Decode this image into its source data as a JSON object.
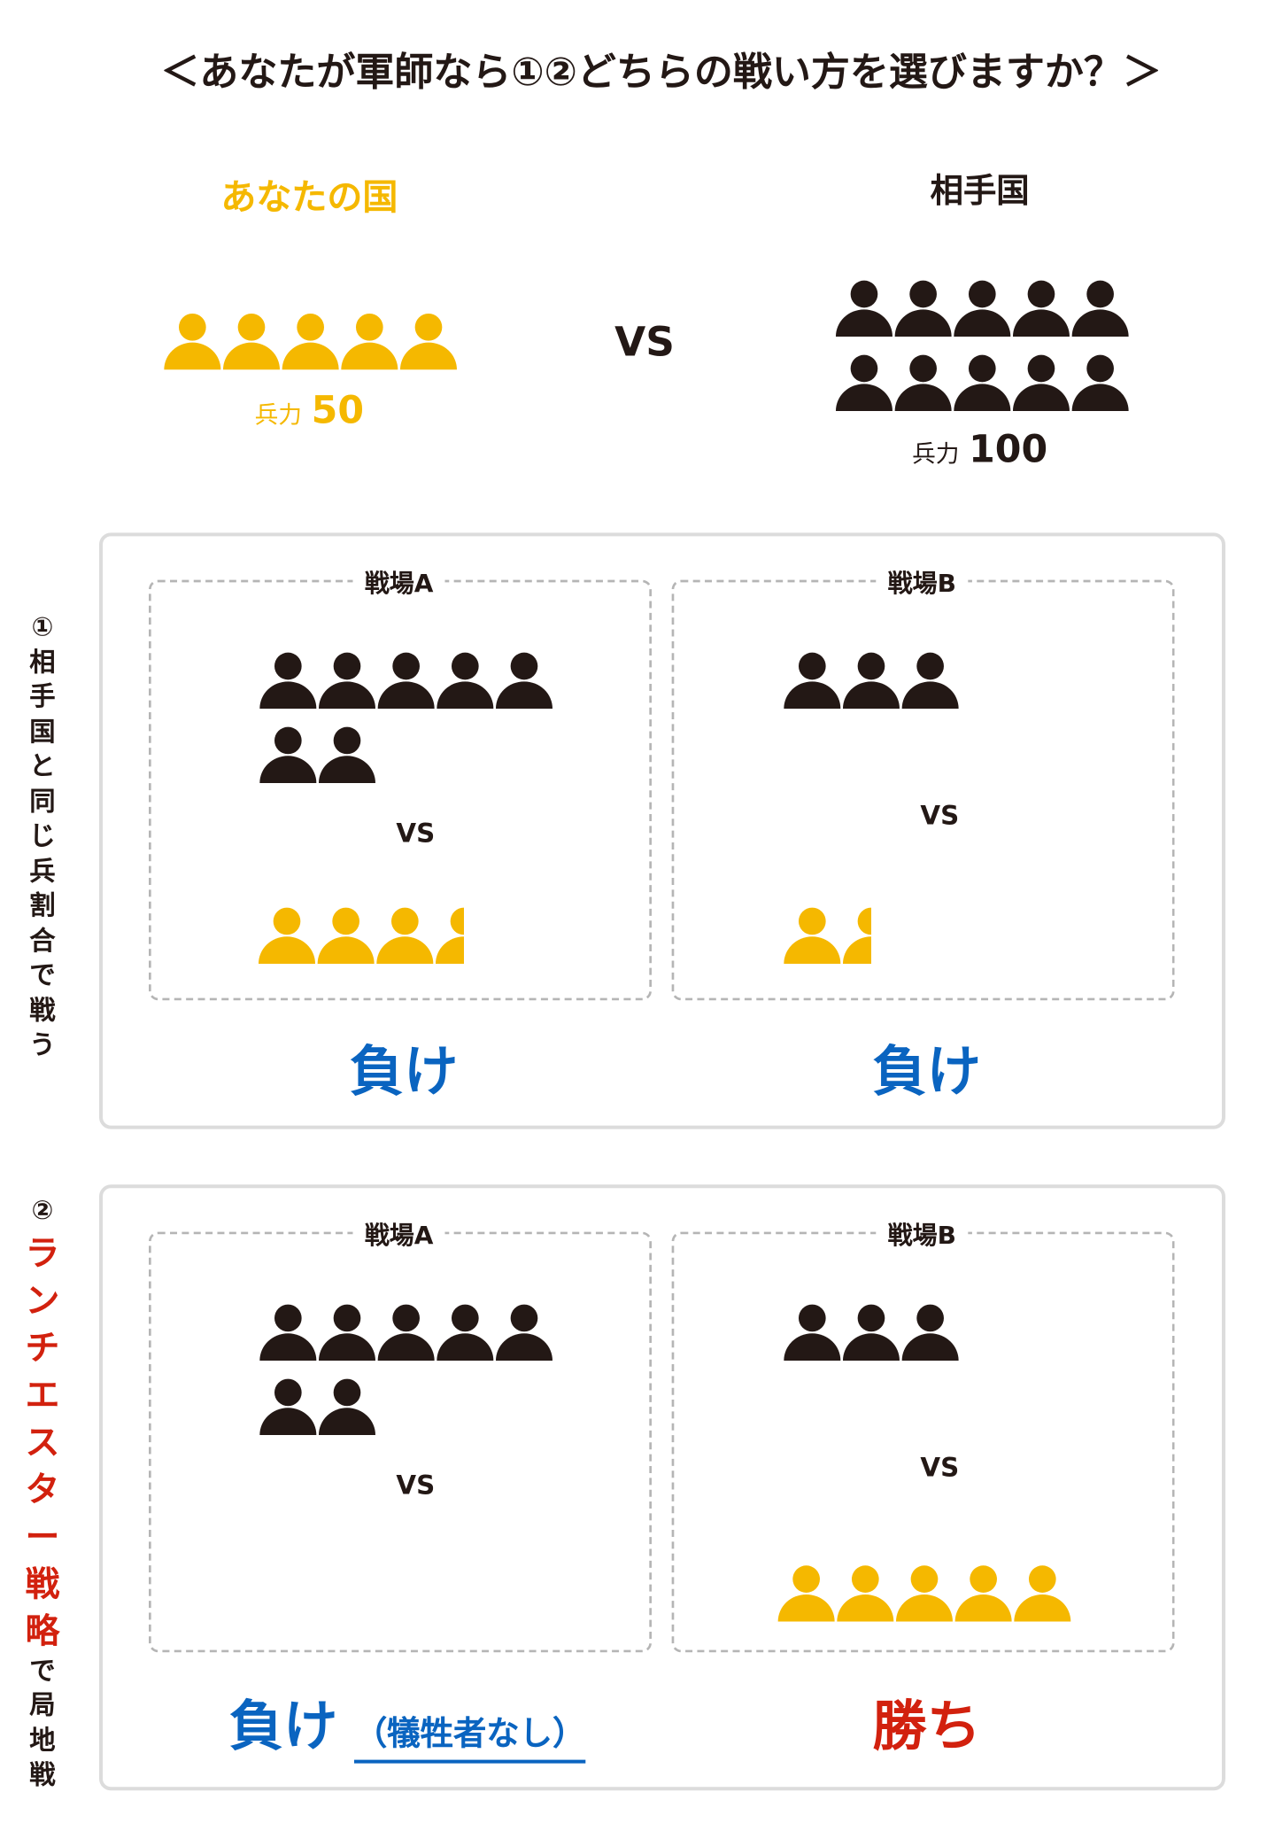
{
  "title": "＜あなたが軍師なら①②どちらの戦い方を選びますか？＞",
  "colors": {
    "you": "#f5b800",
    "enemy": "#231815",
    "lose": "#0a64c0",
    "win": "#d2210e",
    "highlight": "#d2210e"
  },
  "icon": "person-icon",
  "top": {
    "you": {
      "label": "あなたの国",
      "force_label": "兵力",
      "force_value": "50",
      "icons": 5
    },
    "vs": "VS",
    "enemy": {
      "label": "相手国",
      "force_label": "兵力",
      "force_value": "100",
      "icons": 10
    }
  },
  "scenarios": [
    {
      "label_prefix": "①",
      "label_chars": [
        "相",
        "手",
        "国",
        "と",
        "同",
        "じ",
        "兵",
        "割",
        "合",
        "で",
        "戦",
        "う"
      ],
      "label_highlight_count": 0,
      "fields": [
        {
          "label": "戦場A",
          "enemy_icons": 7,
          "you_icons": 3.5,
          "vs": "VS",
          "result": "負け",
          "result_type": "lose"
        },
        {
          "label": "戦場B",
          "enemy_icons": 3,
          "you_icons": 1.5,
          "vs": "VS",
          "result": "負け",
          "result_type": "lose"
        }
      ]
    },
    {
      "label_prefix": "②",
      "label_chars": [
        "ラ",
        "ン",
        "チ",
        "エ",
        "ス",
        "タ",
        "ー",
        "戦",
        "略",
        "で",
        "局",
        "地",
        "戦"
      ],
      "label_highlight_count": 9,
      "fields": [
        {
          "label": "戦場A",
          "enemy_icons": 7,
          "you_icons": 0,
          "vs": "VS",
          "result": "負け",
          "result_note": "（犠牲者なし）",
          "result_type": "lose"
        },
        {
          "label": "戦場B",
          "enemy_icons": 3,
          "you_icons": 5,
          "vs": "VS",
          "result": "勝ち",
          "result_type": "win"
        }
      ]
    }
  ]
}
